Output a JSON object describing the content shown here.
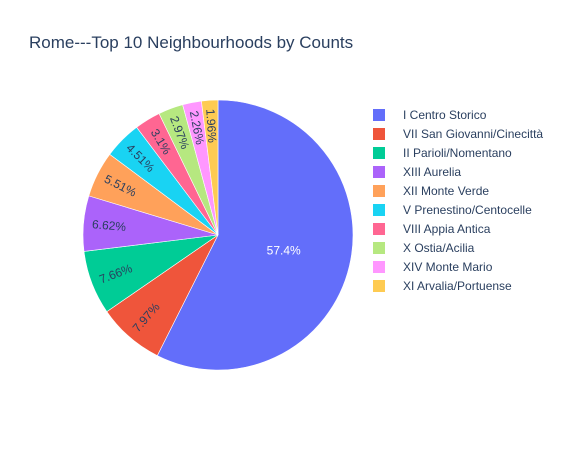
{
  "chart_data": {
    "type": "pie",
    "title": "Rome---Top 10 Neighbourhoods by Counts",
    "legend_position": "right",
    "slices": [
      {
        "label": "I Centro Storico",
        "percent": 57.4,
        "text": "57.4%",
        "color": "#636efa"
      },
      {
        "label": "VII San Giovanni/Cinecittà",
        "percent": 7.97,
        "text": "7.97%",
        "color": "#ef553b"
      },
      {
        "label": "II Parioli/Nomentano",
        "percent": 7.66,
        "text": "7.66%",
        "color": "#00cc96"
      },
      {
        "label": "XIII Aurelia",
        "percent": 6.62,
        "text": "6.62%",
        "color": "#ab63fa"
      },
      {
        "label": "XII Monte Verde",
        "percent": 5.51,
        "text": "5.51%",
        "color": "#ffa15a"
      },
      {
        "label": "V Prenestino/Centocelle",
        "percent": 4.51,
        "text": "4.51%",
        "color": "#19d3f3"
      },
      {
        "label": "VIII Appia Antica",
        "percent": 3.1,
        "text": "3.1%",
        "color": "#ff6692"
      },
      {
        "label": "X Ostia/Acilia",
        "percent": 2.97,
        "text": "2.97%",
        "color": "#b6e880"
      },
      {
        "label": "XIV Monte Mario",
        "percent": 2.26,
        "text": "2.26%",
        "color": "#ff97ff"
      },
      {
        "label": "XI Arvalia/Portuense",
        "percent": 1.96,
        "text": "1.96%",
        "color": "#fecb52"
      }
    ]
  }
}
